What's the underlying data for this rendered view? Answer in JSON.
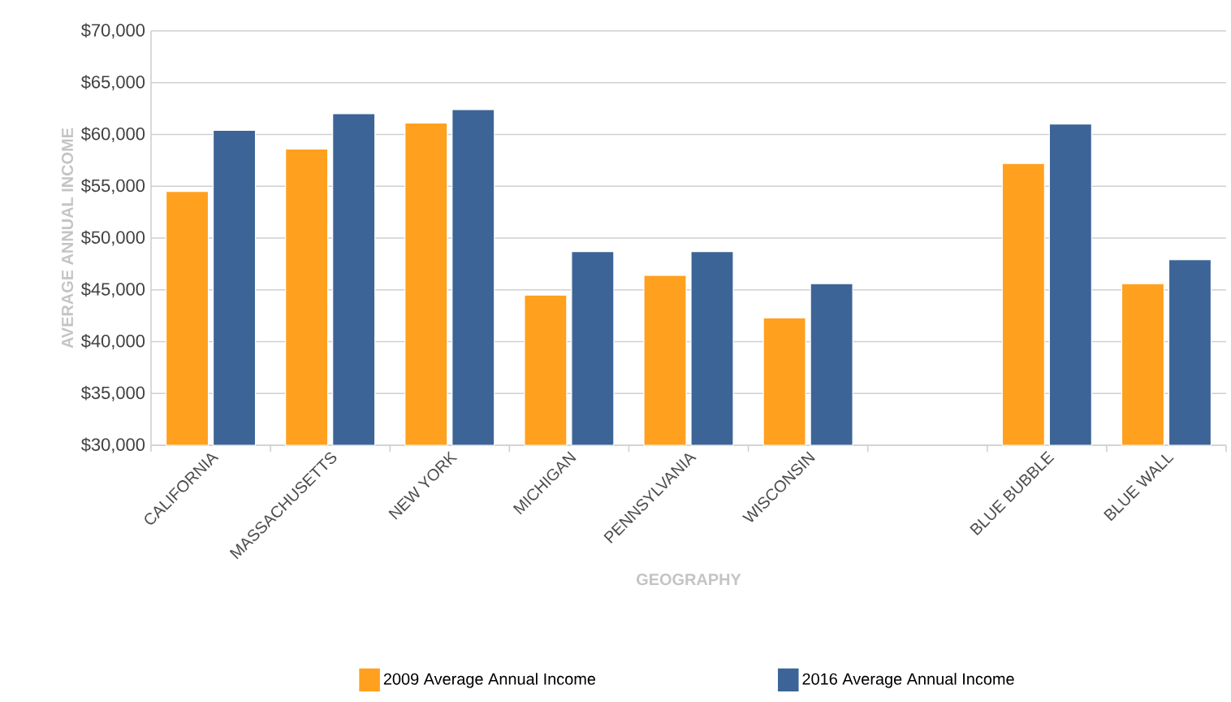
{
  "chart_data": {
    "type": "bar",
    "xlabel": "GEOGRAPHY",
    "ylabel": "AVERAGE ANNUAL INCOME",
    "categories": [
      "CALIFORNIA",
      "MASSACHUSETTS",
      "NEW YORK",
      "MICHIGAN",
      "PENNSYLVANIA",
      "WISCONSIN",
      null,
      "BLUE BUBBLE",
      "BLUE WALL"
    ],
    "series": [
      {
        "name": "2009 Average Annual Income",
        "color": "#ffa01e",
        "values": [
          54500,
          58600,
          61100,
          44500,
          46400,
          42300,
          null,
          57200,
          45600
        ]
      },
      {
        "name": "2016 Average Annual Income",
        "color": "#3c6496",
        "values": [
          60400,
          62000,
          62400,
          48700,
          48700,
          45600,
          null,
          61000,
          47900
        ]
      }
    ],
    "ylim": [
      30000,
      70000
    ],
    "yticks": [
      {
        "value": 30000,
        "label": "$30,000"
      },
      {
        "value": 35000,
        "label": "$35,000"
      },
      {
        "value": 40000,
        "label": "$40,000"
      },
      {
        "value": 45000,
        "label": "$45,000"
      },
      {
        "value": 50000,
        "label": "$50,000"
      },
      {
        "value": 55000,
        "label": "$55,000"
      },
      {
        "value": 60000,
        "label": "$60,000"
      },
      {
        "value": 65000,
        "label": "$65,000"
      },
      {
        "value": 70000,
        "label": "$70,000"
      }
    ],
    "grid": "y",
    "legend": "bottom"
  }
}
